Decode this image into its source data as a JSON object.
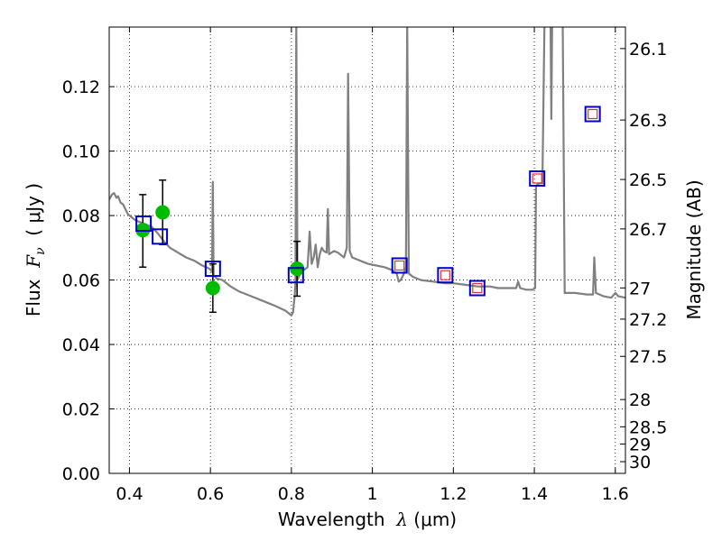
{
  "chart_data": {
    "type": "scatter",
    "xlabel": "Wavelength  λ (μm)",
    "xlabel_parts": {
      "prefix": "Wavelength  ",
      "symbol": "λ",
      "unit": " (μm)"
    },
    "ylabel": "Flux  Fν  ( μJy )",
    "ylabel_parts": {
      "prefix": "Flux  ",
      "symbol": "F",
      "subscript": "ν",
      "unit": "  ( μJy )"
    },
    "y2label": "Magnitude (AB)",
    "xlim": [
      0.35,
      1.625
    ],
    "ylim": [
      0.0,
      0.1385
    ],
    "grid": true,
    "xticks": [
      0.4,
      0.6,
      0.8,
      1.0,
      1.2,
      1.4,
      1.6
    ],
    "xtick_labels": [
      "0.4",
      "0.6",
      "0.8",
      "1",
      "1.2",
      "1.4",
      "1.6"
    ],
    "yticks": [
      0.0,
      0.02,
      0.04,
      0.06,
      0.08,
      0.1,
      0.12
    ],
    "ytick_labels": [
      "0.00",
      "0.02",
      "0.04",
      "0.06",
      "0.08",
      "0.10",
      "0.12"
    ],
    "y2ticks": [
      {
        "label": "26.1",
        "mag": 26.1
      },
      {
        "label": "26.3",
        "mag": 26.3
      },
      {
        "label": "26.5",
        "mag": 26.5
      },
      {
        "label": "26.7",
        "mag": 26.7
      },
      {
        "label": "27",
        "mag": 27.0
      },
      {
        "label": "27.2",
        "mag": 27.2
      },
      {
        "label": "27.5",
        "mag": 27.5
      },
      {
        "label": "28",
        "mag": 28.0
      },
      {
        "label": "28.5",
        "mag": 28.5
      },
      {
        "label": "29",
        "mag": 29.0
      },
      {
        "label": "30",
        "mag": 30.0
      }
    ],
    "series": [
      {
        "name": "model-spectrum",
        "kind": "line",
        "color": "#808080",
        "points": [
          [
            0.35,
            0.085
          ],
          [
            0.357,
            0.0865
          ],
          [
            0.362,
            0.087
          ],
          [
            0.368,
            0.0855
          ],
          [
            0.372,
            0.086
          ],
          [
            0.378,
            0.084
          ],
          [
            0.384,
            0.0835
          ],
          [
            0.39,
            0.082
          ],
          [
            0.396,
            0.0805
          ],
          [
            0.405,
            0.0795
          ],
          [
            0.415,
            0.0785
          ],
          [
            0.425,
            0.078
          ],
          [
            0.435,
            0.0775
          ],
          [
            0.445,
            0.077
          ],
          [
            0.455,
            0.0765
          ],
          [
            0.47,
            0.0745
          ],
          [
            0.485,
            0.072
          ],
          [
            0.5,
            0.07
          ],
          [
            0.52,
            0.0685
          ],
          [
            0.54,
            0.067
          ],
          [
            0.56,
            0.066
          ],
          [
            0.58,
            0.0645
          ],
          [
            0.598,
            0.0635
          ],
          [
            0.604,
            0.0625
          ],
          [
            0.606,
            0.0905
          ],
          [
            0.608,
            0.0615
          ],
          [
            0.615,
            0.0605
          ],
          [
            0.63,
            0.06
          ],
          [
            0.65,
            0.058
          ],
          [
            0.67,
            0.0565
          ],
          [
            0.7,
            0.055
          ],
          [
            0.73,
            0.0535
          ],
          [
            0.76,
            0.052
          ],
          [
            0.785,
            0.0505
          ],
          [
            0.8,
            0.049
          ],
          [
            0.804,
            0.05
          ],
          [
            0.808,
            0.055
          ],
          [
            0.81,
            0.059
          ],
          [
            0.812,
            0.14
          ],
          [
            0.815,
            0.06
          ],
          [
            0.822,
            0.062
          ],
          [
            0.83,
            0.063
          ],
          [
            0.84,
            0.064
          ],
          [
            0.845,
            0.075
          ],
          [
            0.85,
            0.065
          ],
          [
            0.855,
            0.067
          ],
          [
            0.86,
            0.071
          ],
          [
            0.865,
            0.064
          ],
          [
            0.87,
            0.068
          ],
          [
            0.875,
            0.07
          ],
          [
            0.88,
            0.069
          ],
          [
            0.887,
            0.0685
          ],
          [
            0.89,
            0.082
          ],
          [
            0.893,
            0.068
          ],
          [
            0.905,
            0.069
          ],
          [
            0.915,
            0.0685
          ],
          [
            0.93,
            0.067
          ],
          [
            0.937,
            0.07
          ],
          [
            0.94,
            0.124
          ],
          [
            0.944,
            0.069
          ],
          [
            0.95,
            0.067
          ],
          [
            0.97,
            0.066
          ],
          [
            0.99,
            0.065
          ],
          [
            1.01,
            0.0645
          ],
          [
            1.03,
            0.064
          ],
          [
            1.05,
            0.063
          ],
          [
            1.06,
            0.062
          ],
          [
            1.065,
            0.0595
          ],
          [
            1.07,
            0.06
          ],
          [
            1.078,
            0.062
          ],
          [
            1.083,
            0.064
          ],
          [
            1.086,
            0.14
          ],
          [
            1.09,
            0.062
          ],
          [
            1.1,
            0.061
          ],
          [
            1.12,
            0.06
          ],
          [
            1.15,
            0.0595
          ],
          [
            1.18,
            0.059
          ],
          [
            1.2,
            0.059
          ],
          [
            1.23,
            0.0585
          ],
          [
            1.26,
            0.058
          ],
          [
            1.29,
            0.058
          ],
          [
            1.31,
            0.0575
          ],
          [
            1.34,
            0.0575
          ],
          [
            1.355,
            0.0575
          ],
          [
            1.36,
            0.0595
          ],
          [
            1.365,
            0.0575
          ],
          [
            1.38,
            0.057
          ],
          [
            1.395,
            0.057
          ],
          [
            1.402,
            0.0575
          ],
          [
            1.404,
            0.089
          ],
          [
            1.41,
            0.09
          ],
          [
            1.42,
            0.09
          ],
          [
            1.425,
            0.14
          ],
          [
            1.44,
            0.14
          ],
          [
            1.442,
            0.11
          ],
          [
            1.444,
            0.14
          ],
          [
            1.455,
            0.14
          ],
          [
            1.47,
            0.14
          ],
          [
            1.475,
            0.056
          ],
          [
            1.5,
            0.056
          ],
          [
            1.53,
            0.0555
          ],
          [
            1.545,
            0.0555
          ],
          [
            1.548,
            0.067
          ],
          [
            1.552,
            0.056
          ],
          [
            1.57,
            0.055
          ],
          [
            1.59,
            0.0545
          ],
          [
            1.6,
            0.056
          ],
          [
            1.607,
            0.055
          ],
          [
            1.625,
            0.0545
          ]
        ]
      },
      {
        "name": "observed-flux",
        "kind": "points",
        "marker": "filled-circle",
        "color": "#00bb00",
        "points": [
          {
            "x": 0.433,
            "y": 0.0755,
            "yerr_low": 0.064,
            "yerr_high": 0.0865
          },
          {
            "x": 0.482,
            "y": 0.081,
            "yerr_low": 0.071,
            "yerr_high": 0.091
          },
          {
            "x": 0.606,
            "y": 0.0575,
            "yerr_low": 0.05,
            "yerr_high": 0.065
          },
          {
            "x": 0.814,
            "y": 0.0635,
            "yerr_low": 0.055,
            "yerr_high": 0.072
          }
        ]
      },
      {
        "name": "model-synthetic-photometry",
        "kind": "points",
        "marker": "open-square",
        "color": "#0000cc",
        "points": [
          [
            0.435,
            0.0775
          ],
          [
            0.475,
            0.0735
          ],
          [
            0.606,
            0.0635
          ],
          [
            0.811,
            0.0615
          ],
          [
            1.067,
            0.0645
          ],
          [
            1.18,
            0.0615
          ],
          [
            1.259,
            0.0575
          ],
          [
            1.407,
            0.0915
          ],
          [
            1.544,
            0.1115
          ]
        ]
      },
      {
        "name": "model-band-flux",
        "kind": "points",
        "marker": "small-open-square",
        "color": "#dd3333",
        "points": [
          [
            1.067,
            0.0645
          ],
          [
            1.18,
            0.0615
          ],
          [
            1.259,
            0.0575
          ],
          [
            1.407,
            0.0915
          ],
          [
            1.544,
            0.1115
          ]
        ]
      }
    ]
  }
}
